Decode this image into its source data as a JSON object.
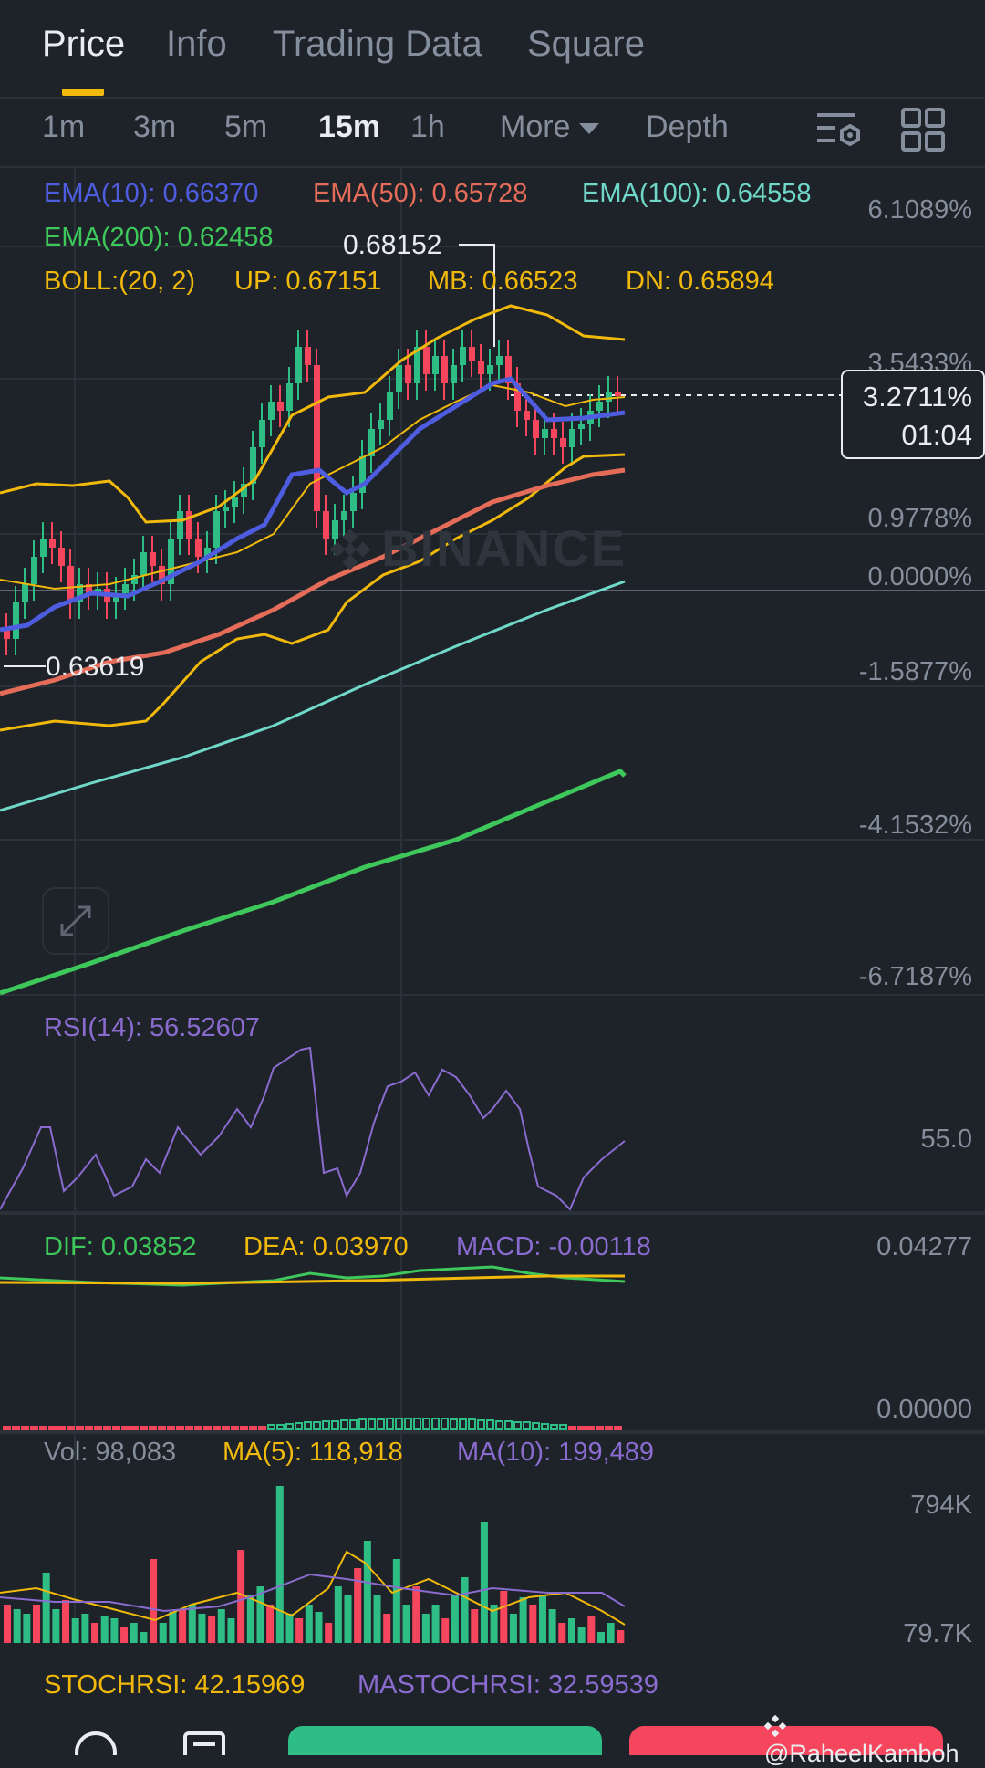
{
  "tabs": [
    {
      "label": "Price",
      "active": true
    },
    {
      "label": "Info",
      "active": false
    },
    {
      "label": "Trading Data",
      "active": false
    },
    {
      "label": "Square",
      "active": false
    }
  ],
  "intervals": [
    {
      "label": "1m",
      "active": false
    },
    {
      "label": "3m",
      "active": false
    },
    {
      "label": "5m",
      "active": false
    },
    {
      "label": "15m",
      "active": true
    },
    {
      "label": "1h",
      "active": false
    }
  ],
  "more_label": "More",
  "depth_label": "Depth",
  "icons": {
    "indicator_settings": "chart-settings-icon",
    "layout": "grid-layout-icon",
    "expand": "expand-arrows-icon",
    "brand": "binance-logo-icon"
  },
  "colors": {
    "background": "#1e2329",
    "ema10": "#4e5ce0",
    "ema50": "#e56c58",
    "ema100": "#6fd8c8",
    "ema200": "#3ec75b",
    "boll": "#f0b90b",
    "up": "#2ebd85",
    "down": "#f6465d",
    "rsi": "#8a6bd0",
    "muted": "#848e9c"
  },
  "legend": {
    "ema10": "EMA(10): 0.66370",
    "ema50": "EMA(50): 0.65728",
    "ema100": "EMA(100): 0.64558",
    "ema200": "EMA(200): 0.62458",
    "boll": "BOLL:(20, 2)",
    "boll_up": "UP: 0.67151",
    "boll_mb": "MB: 0.66523",
    "boll_dn": "DN: 0.65894"
  },
  "price_axis": [
    "6.1089%",
    "3.5433%",
    "0.9778%",
    "0.0000%",
    "-1.5877%",
    "-4.1532%",
    "-6.7187%"
  ],
  "current_price": {
    "percent": "3.2711%",
    "countdown": "01:04"
  },
  "high_label": "0.68152",
  "low_label": "0.63619",
  "watermark": "BINANCE",
  "rsi": {
    "label": "RSI(14): 56.52607",
    "axis": "55.0"
  },
  "macd": {
    "dif": "DIF: 0.03852",
    "dea": "DEA: 0.03970",
    "macd": "MACD: -0.00118",
    "axis_top": "0.04277",
    "axis_bottom": "0.00000"
  },
  "volume": {
    "vol": "Vol: 98,083",
    "ma5": "MA(5): 118,918",
    "ma10": "MA(10): 199,489",
    "axis_top": "794K",
    "axis_bottom": "79.7K"
  },
  "stochrsi": {
    "stoch": "STOCHRSI: 42.15969",
    "mastoch": "MASTOCHRSI: 32.59539"
  },
  "credit": "@RaheelKamboh"
}
